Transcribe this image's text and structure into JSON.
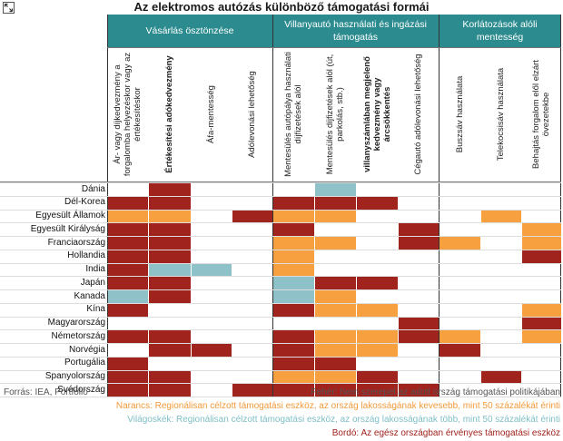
{
  "chart_data": {
    "type": "table",
    "title": "Az elektromos autózás különböző támogatási formái",
    "groups": [
      {
        "label": "Vásárlás ösztönzése",
        "columns": 4
      },
      {
        "label": "Villanyautó használati és ingázási támogatás",
        "columns": 4
      },
      {
        "label": "Korlátozások alóli mentesség",
        "columns": 3
      }
    ],
    "columns": [
      "Ár- vagy díjkedvezmény a forgalomba helyezéskor vagy az értékesítéskor",
      "Értékesítési adókedvezmény",
      "Áfa-mentesség",
      "Adólevonási lehetőség",
      "Mentesülés autópálya használati díjfizetések alól",
      "Mentesülés díjfizetések alól (út, parkolás, stb.)",
      "villanyszámlában megjelenő kedvezmény vagy árcsökkentés",
      "Cégautó adólevonási lehetőség",
      "Buszsáv használata",
      "Telekocsisáv használata",
      "Behajtás forgalom elől elzárt övezetekbe"
    ],
    "rows": [
      "Dánia",
      "Dél-Korea",
      "Egyesült Államok",
      "Egyesült Királyság",
      "Franciaország",
      "Hollandia",
      "India",
      "Japán",
      "Kanada",
      "Kína",
      "Magyarország",
      "Németország",
      "Norvégia",
      "Portugália",
      "Spanyolország",
      "Svédország"
    ],
    "legend": {
      "B": "Bordó",
      "O": "Narancs",
      "L": "Világoskék",
      "W": "Fehér"
    },
    "colors": {
      "B": "#a0231e",
      "O": "#f7a03f",
      "L": "#8ec1c8",
      "W": "#ffffff"
    },
    "cells": [
      [
        "W",
        "B",
        "W",
        "W",
        "W",
        "L",
        "W",
        "W",
        "W",
        "W",
        "W"
      ],
      [
        "B",
        "B",
        "W",
        "W",
        "B",
        "B",
        "B",
        "W",
        "W",
        "W",
        "W"
      ],
      [
        "O",
        "O",
        "W",
        "B",
        "O",
        "O",
        "W",
        "W",
        "W",
        "O",
        "W"
      ],
      [
        "B",
        "B",
        "W",
        "W",
        "B",
        "W",
        "W",
        "B",
        "W",
        "W",
        "O"
      ],
      [
        "B",
        "B",
        "W",
        "W",
        "O",
        "O",
        "W",
        "B",
        "O",
        "W",
        "O"
      ],
      [
        "B",
        "B",
        "W",
        "W",
        "O",
        "W",
        "W",
        "W",
        "W",
        "W",
        "B"
      ],
      [
        "B",
        "L",
        "L",
        "W",
        "O",
        "W",
        "W",
        "W",
        "W",
        "W",
        "W"
      ],
      [
        "B",
        "B",
        "W",
        "W",
        "L",
        "B",
        "B",
        "W",
        "W",
        "W",
        "W"
      ],
      [
        "L",
        "B",
        "W",
        "W",
        "L",
        "O",
        "W",
        "W",
        "W",
        "W",
        "W"
      ],
      [
        "B",
        "W",
        "W",
        "W",
        "B",
        "O",
        "O",
        "W",
        "W",
        "W",
        "O"
      ],
      [
        "W",
        "W",
        "W",
        "W",
        "W",
        "W",
        "W",
        "B",
        "W",
        "W",
        "B"
      ],
      [
        "B",
        "B",
        "W",
        "W",
        "B",
        "O",
        "O",
        "B",
        "O",
        "W",
        "O"
      ],
      [
        "W",
        "B",
        "B",
        "W",
        "B",
        "O",
        "O",
        "W",
        "B",
        "W",
        "W"
      ],
      [
        "B",
        "W",
        "W",
        "W",
        "B",
        "B",
        "W",
        "W",
        "W",
        "W",
        "W"
      ],
      [
        "B",
        "B",
        "W",
        "W",
        "O",
        "O",
        "B",
        "W",
        "W",
        "B",
        "W"
      ],
      [
        "B",
        "B",
        "W",
        "B",
        "B",
        "B",
        "B",
        "B",
        "W",
        "W",
        "W"
      ]
    ]
  },
  "footer": {
    "source": "Forrás: IEA, Portfolio",
    "legend_white": "Fehér: Nem szerepel az adott ország támogatási politikájában",
    "legend_orange": "Narancs: Regionálisan célzott támogatási eszköz, az ország lakosságának kevesebb, mint 50 százalékát érinti",
    "legend_lightblue": "Világoskék: Regionálisan célzott támogatási eszköz, az ország lakosságának több, mint 50 százalékát érinti",
    "legend_bordo": "Bordó: Az egész országban érvényes támogatási eszköz"
  },
  "toolbar": {
    "expand_icon": "expand-arrows-icon"
  }
}
